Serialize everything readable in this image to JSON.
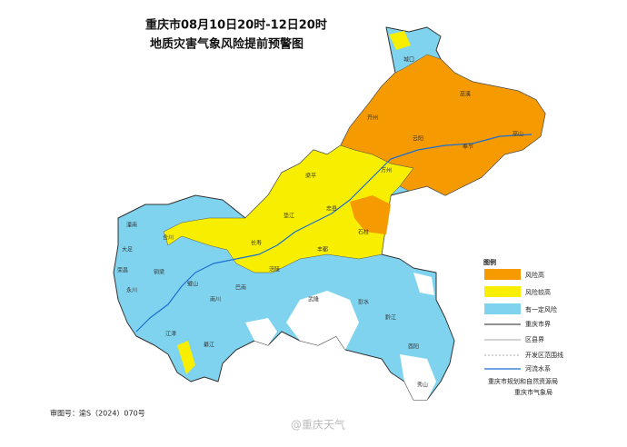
{
  "title": {
    "line1": "重庆市08月10日20时-12日20时",
    "line2": "地质灾害气象风险提前预警图"
  },
  "legend": {
    "heading": "图例",
    "items": [
      "风险高",
      "风险较高",
      "有一定风险",
      "重庆市界",
      "区县界",
      "开发区范围线",
      "河流水系"
    ]
  },
  "agencies": [
    "重庆市规划和自然资源局",
    "重庆市气象局"
  ],
  "approval": "审图号：渝S（2024）070号",
  "watermark": "@重庆天气",
  "districts": [
    "城口",
    "巫溪",
    "开州",
    "云阳",
    "巫山",
    "奉节",
    "万州",
    "梁平",
    "忠县",
    "石柱",
    "垫江",
    "长寿",
    "丰都",
    "涪陵",
    "武隆",
    "彭水",
    "黔江",
    "酉阳",
    "秀山",
    "南川",
    "綦江",
    "江津",
    "永川",
    "荣昌",
    "大足",
    "潼南",
    "合川",
    "铜梁",
    "璧山",
    "巴南"
  ]
}
